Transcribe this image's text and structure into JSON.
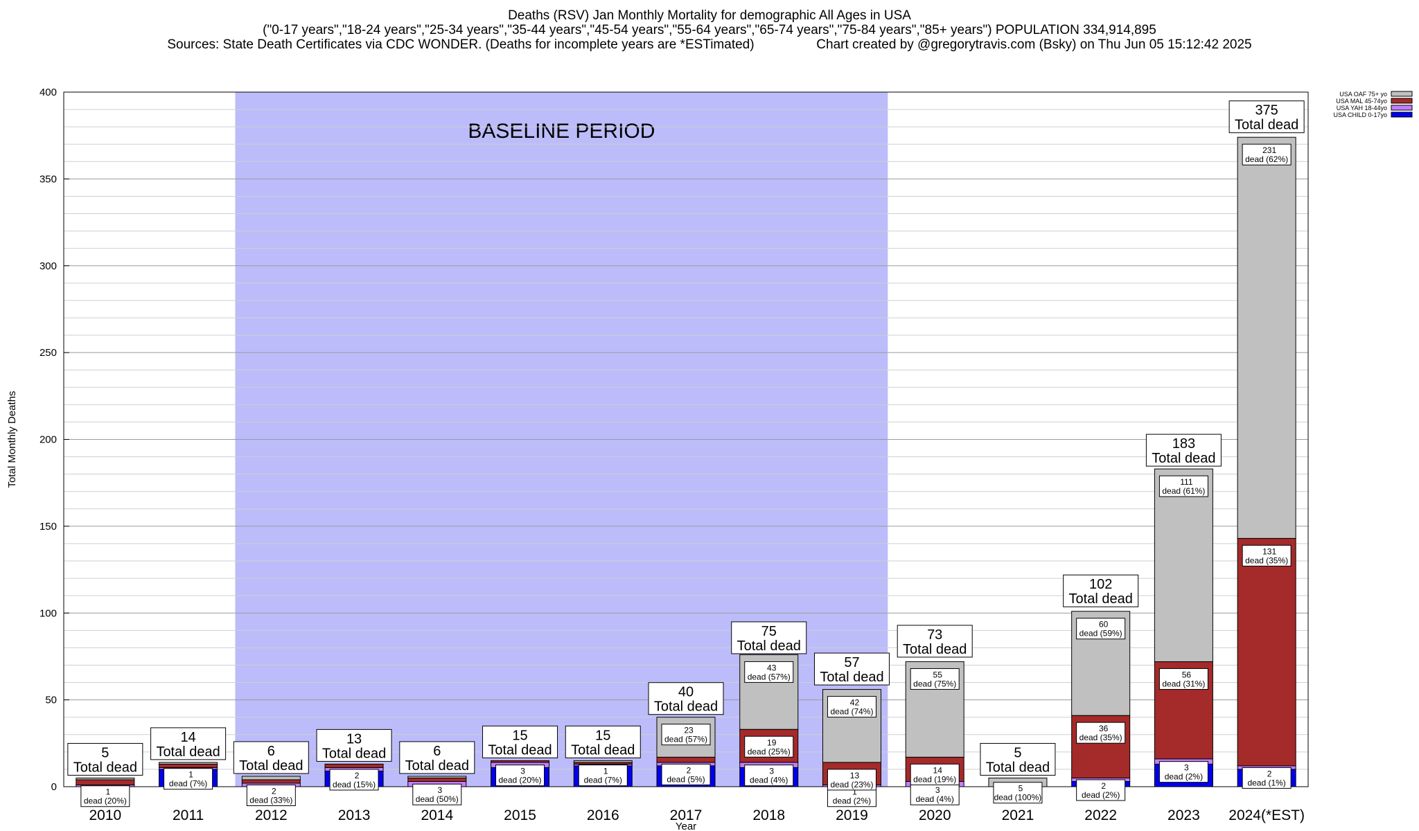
{
  "header": {
    "title_line1": "Deaths (RSV) Jan Monthly Mortality for demographic All Ages in USA",
    "title_line2": "(\"0-17 years\",\"18-24 years\",\"25-34 years\",\"35-44 years\",\"45-54 years\",\"55-64 years\",\"65-74 years\",\"75-84 years\",\"85+ years\") POPULATION 334,914,895",
    "title_line3": "Sources: State Death Certificates via CDC WONDER. (Deaths for incomplete years are *ESTimated)                 Chart created by @gregorytravis.com (Bsky) on Thu Jun 05 15:12:42 2025"
  },
  "chart_data": {
    "type": "bar",
    "stacked": true,
    "title": "Deaths (RSV) Jan Monthly Mortality for demographic All Ages in USA",
    "xlabel": "Year",
    "ylabel": "Total Monthly Deaths",
    "ylim": [
      0,
      400
    ],
    "yticks": [
      0,
      50,
      100,
      150,
      200,
      250,
      300,
      350,
      400
    ],
    "grid": true,
    "legend_position": "top-right",
    "baseline": {
      "label": "BASELINE PERIOD",
      "from": "2012",
      "to": "2019",
      "color": "#bcbcfa"
    },
    "categories": [
      "2010",
      "2011",
      "2012",
      "2013",
      "2014",
      "2015",
      "2016",
      "2017",
      "2018",
      "2019",
      "2020",
      "2021",
      "2022",
      "2023",
      "2024(*EST)"
    ],
    "series": [
      {
        "name": "USA CHILD 0-17yo",
        "color": "#0000ee",
        "values": [
          0,
          10,
          0,
          9,
          0,
          11,
          12,
          12,
          11,
          0,
          0,
          0,
          3,
          13,
          10
        ]
      },
      {
        "name": "USA YAH 18-44yo",
        "color": "#c080ff",
        "values": [
          1,
          1,
          2,
          2,
          3,
          3,
          1,
          2,
          3,
          1,
          3,
          0,
          2,
          3,
          2
        ]
      },
      {
        "name": "USA MAL 45-74yo",
        "color": "#a52a2a",
        "values": [
          3,
          2,
          2,
          2,
          2,
          1,
          1,
          3,
          19,
          13,
          14,
          0,
          36,
          56,
          131
        ]
      },
      {
        "name": "USA OAF 75+ yo",
        "color": "#c0c0c0",
        "values": [
          1,
          1,
          2,
          0,
          1,
          0,
          1,
          23,
          43,
          42,
          55,
          5,
          60,
          111,
          231
        ]
      }
    ],
    "totals": [
      5,
      14,
      6,
      13,
      6,
      15,
      15,
      40,
      75,
      57,
      73,
      5,
      102,
      183,
      375
    ],
    "total_suffix": "Total dead",
    "segment_labels": [
      {
        "cat": 0,
        "series": 1,
        "count": "1",
        "pct": "dead (20%)"
      },
      {
        "cat": 1,
        "series": 1,
        "count": "1",
        "pct": "dead (7%)"
      },
      {
        "cat": 2,
        "series": 1,
        "count": "2",
        "pct": "dead (33%)"
      },
      {
        "cat": 3,
        "series": 1,
        "count": "2",
        "pct": "dead (15%)"
      },
      {
        "cat": 4,
        "series": 1,
        "count": "3",
        "pct": "dead (50%)"
      },
      {
        "cat": 5,
        "series": 1,
        "count": "3",
        "pct": "dead (20%)"
      },
      {
        "cat": 6,
        "series": 1,
        "count": "1",
        "pct": "dead (7%)"
      },
      {
        "cat": 7,
        "series": 1,
        "count": "2",
        "pct": "dead (5%)"
      },
      {
        "cat": 7,
        "series": 3,
        "count": "23",
        "pct": "dead (57%)"
      },
      {
        "cat": 8,
        "series": 1,
        "count": "3",
        "pct": "dead (4%)"
      },
      {
        "cat": 8,
        "series": 2,
        "count": "19",
        "pct": "dead (25%)"
      },
      {
        "cat": 8,
        "series": 3,
        "count": "43",
        "pct": "dead (57%)"
      },
      {
        "cat": 9,
        "series": 1,
        "count": "1",
        "pct": "dead (2%)"
      },
      {
        "cat": 9,
        "series": 2,
        "count": "13",
        "pct": "dead (23%)"
      },
      {
        "cat": 9,
        "series": 3,
        "count": "42",
        "pct": "dead (74%)"
      },
      {
        "cat": 10,
        "series": 1,
        "count": "3",
        "pct": "dead (4%)"
      },
      {
        "cat": 10,
        "series": 2,
        "count": "14",
        "pct": "dead (19%)"
      },
      {
        "cat": 10,
        "series": 3,
        "count": "55",
        "pct": "dead (75%)"
      },
      {
        "cat": 11,
        "series": 3,
        "count": "5",
        "pct": "dead (100%)"
      },
      {
        "cat": 12,
        "series": 1,
        "count": "2",
        "pct": "dead (2%)"
      },
      {
        "cat": 12,
        "series": 2,
        "count": "36",
        "pct": "dead (35%)"
      },
      {
        "cat": 12,
        "series": 3,
        "count": "60",
        "pct": "dead (59%)"
      },
      {
        "cat": 13,
        "series": 1,
        "count": "3",
        "pct": "dead (2%)"
      },
      {
        "cat": 13,
        "series": 2,
        "count": "56",
        "pct": "dead (31%)"
      },
      {
        "cat": 13,
        "series": 3,
        "count": "111",
        "pct": "dead (61%)"
      },
      {
        "cat": 14,
        "series": 1,
        "count": "2",
        "pct": "dead (1%)"
      },
      {
        "cat": 14,
        "series": 2,
        "count": "131",
        "pct": "dead (35%)"
      },
      {
        "cat": 14,
        "series": 3,
        "count": "231",
        "pct": "dead (62%)"
      }
    ]
  }
}
